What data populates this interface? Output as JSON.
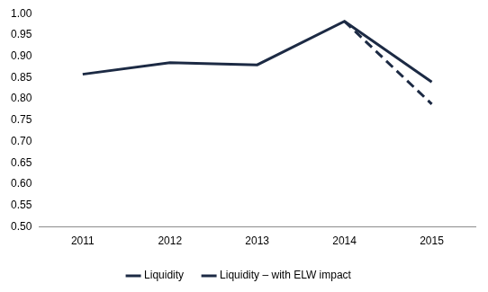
{
  "chart_data": {
    "type": "line",
    "categories": [
      "2011",
      "2012",
      "2013",
      "2014",
      "2015"
    ],
    "series": [
      {
        "name": "Liquidity",
        "color": "#1c2a44",
        "line_style": "solid",
        "values": [
          0.858,
          0.885,
          0.88,
          0.982,
          0.84
        ]
      },
      {
        "name": "Liquidity – with ELW impact",
        "color": "#1c2a44",
        "line_style": "dashed",
        "values": [
          null,
          null,
          null,
          0.982,
          0.788
        ]
      }
    ],
    "ylim": [
      0.5,
      1.0
    ],
    "yticks": [
      {
        "value": 0.5,
        "label": "0.50"
      },
      {
        "value": 0.55,
        "label": "0.55"
      },
      {
        "value": 0.6,
        "label": "0.60"
      },
      {
        "value": 0.65,
        "label": "0.65"
      },
      {
        "value": 0.7,
        "label": "0.70"
      },
      {
        "value": 0.75,
        "label": "0.75"
      },
      {
        "value": 0.8,
        "label": "0.80"
      },
      {
        "value": 0.85,
        "label": "0.85"
      },
      {
        "value": 0.9,
        "label": "0.90"
      },
      {
        "value": 0.95,
        "label": "0.95"
      },
      {
        "value": 1.0,
        "label": "1.00"
      }
    ],
    "grid": false,
    "legend": "bottom"
  }
}
